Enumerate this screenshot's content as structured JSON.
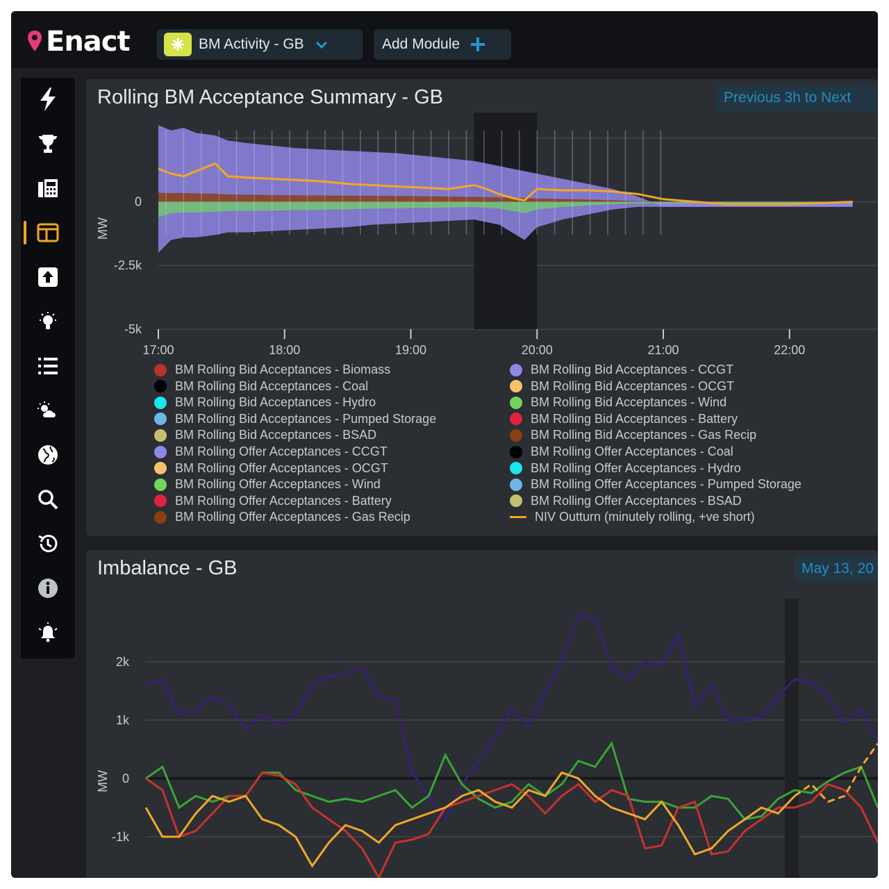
{
  "app": {
    "name": "Enact"
  },
  "toolbar": {
    "module_label": "BM Activity - GB",
    "add_module_label": "Add Module"
  },
  "sidebar": {
    "items": [
      {
        "icon": "bolt-icon"
      },
      {
        "icon": "trophy-icon"
      },
      {
        "icon": "fax-icon"
      },
      {
        "icon": "layout-icon",
        "active": true
      },
      {
        "icon": "upload-icon"
      },
      {
        "icon": "lightbulb-icon"
      },
      {
        "icon": "list-icon"
      },
      {
        "icon": "weather-icon"
      },
      {
        "icon": "globe-icon"
      },
      {
        "icon": "search-icon"
      },
      {
        "icon": "history-icon"
      },
      {
        "icon": "info-icon"
      },
      {
        "icon": "alert-icon"
      }
    ]
  },
  "colors": {
    "accent": "#f5a623",
    "brand_pink": "#e8397a",
    "badge_text": "#1f8fc4"
  },
  "panel1": {
    "title": "Rolling BM Acceptance Summary - GB",
    "range_label": "Previous 3h to Next"
  },
  "panel2": {
    "title": "Imbalance - GB",
    "date_label": "May 13, 20"
  },
  "chart_data": [
    {
      "type": "area",
      "title": "Rolling BM Acceptance Summary - GB",
      "ylabel": "MW",
      "y_ticks": [
        "0",
        "-2.5k",
        "-5k"
      ],
      "x_ticks": [
        "17:00",
        "18:00",
        "19:00",
        "20:00",
        "21:00",
        "22:00"
      ],
      "ylim": [
        -5000,
        3500
      ],
      "highlight_window": [
        "19:30",
        "20:00"
      ],
      "series": [
        {
          "name": "BM Rolling Bid Acceptances - Biomass",
          "color": "#b8322f"
        },
        {
          "name": "BM Rolling Bid Acceptances - CCGT",
          "color": "#8f86e6"
        },
        {
          "name": "BM Rolling Bid Acceptances - Coal",
          "color": "#000000"
        },
        {
          "name": "BM Rolling Bid Acceptances - OCGT",
          "color": "#f5c26b"
        },
        {
          "name": "BM Rolling Bid Acceptances - Hydro",
          "color": "#19e6ef"
        },
        {
          "name": "BM Rolling Bid Acceptances - Wind",
          "color": "#6fd65c"
        },
        {
          "name": "BM Rolling Bid Acceptances - Pumped Storage",
          "color": "#6fb6e6"
        },
        {
          "name": "BM Rolling Bid Acceptances - Battery",
          "color": "#e0213f"
        },
        {
          "name": "BM Rolling Bid Acceptances - BSAD",
          "color": "#c8bf6e"
        },
        {
          "name": "BM Rolling Bid Acceptances - Gas Recip",
          "color": "#8a3f16"
        },
        {
          "name": "BM Rolling Offer Acceptances - CCGT",
          "color": "#8f86e6"
        },
        {
          "name": "BM Rolling Offer Acceptances - Coal",
          "color": "#000000"
        },
        {
          "name": "BM Rolling Offer Acceptances - OCGT",
          "color": "#f5c26b"
        },
        {
          "name": "BM Rolling Offer Acceptances - Hydro",
          "color": "#19e6ef"
        },
        {
          "name": "BM Rolling Offer Acceptances - Wind",
          "color": "#6fd65c"
        },
        {
          "name": "BM Rolling Offer Acceptances - Pumped Storage",
          "color": "#6fb6e6"
        },
        {
          "name": "BM Rolling Offer Acceptances - Battery",
          "color": "#e0213f"
        },
        {
          "name": "BM Rolling Offer Acceptances - BSAD",
          "color": "#c8bf6e"
        },
        {
          "name": "BM Rolling Offer Acceptances - Gas Recip",
          "color": "#8a3f16"
        },
        {
          "name": "NIV Outturn (minutely rolling, +ve short)",
          "color": "#f5a623",
          "line": true
        }
      ],
      "legend_left": [
        {
          "name": "BM Rolling Bid Acceptances - Biomass",
          "color": "#b8322f"
        },
        {
          "name": "BM Rolling Bid Acceptances - Coal",
          "color": "#000000"
        },
        {
          "name": "BM Rolling Bid Acceptances - Hydro",
          "color": "#19e6ef"
        },
        {
          "name": "BM Rolling Bid Acceptances - Pumped Storage",
          "color": "#6fb6e6"
        },
        {
          "name": "BM Rolling Bid Acceptances - BSAD",
          "color": "#c8bf6e"
        },
        {
          "name": "BM Rolling Offer Acceptances - CCGT",
          "color": "#8f86e6"
        },
        {
          "name": "BM Rolling Offer Acceptances - OCGT",
          "color": "#f5c26b"
        },
        {
          "name": "BM Rolling Offer Acceptances - Wind",
          "color": "#6fd65c"
        },
        {
          "name": "BM Rolling Offer Acceptances - Battery",
          "color": "#e0213f"
        },
        {
          "name": "BM Rolling Offer Acceptances - Gas Recip",
          "color": "#8a3f16"
        }
      ],
      "legend_right": [
        {
          "name": "BM Rolling Bid Acceptances - CCGT",
          "color": "#8f86e6"
        },
        {
          "name": "BM Rolling Bid Acceptances - OCGT",
          "color": "#f5c26b"
        },
        {
          "name": "BM Rolling Bid Acceptances - Wind",
          "color": "#6fd65c"
        },
        {
          "name": "BM Rolling Bid Acceptances - Battery",
          "color": "#e0213f"
        },
        {
          "name": "BM Rolling Bid Acceptances - Gas Recip",
          "color": "#8a3f16"
        },
        {
          "name": "BM Rolling Offer Acceptances - Coal",
          "color": "#000000"
        },
        {
          "name": "BM Rolling Offer Acceptances - Hydro",
          "color": "#19e6ef"
        },
        {
          "name": "BM Rolling Offer Acceptances - Pumped Storage",
          "color": "#6fb6e6"
        },
        {
          "name": "BM Rolling Offer Acceptances - BSAD",
          "color": "#c8bf6e"
        },
        {
          "name": "NIV Outturn (minutely rolling, +ve short)",
          "color": "#f5a623",
          "line": true
        }
      ],
      "niv_x_hours": [
        17.0,
        17.1,
        17.2,
        17.3,
        17.45,
        17.55,
        17.7,
        17.9,
        18.1,
        18.3,
        18.5,
        18.7,
        18.9,
        19.1,
        19.3,
        19.5,
        19.6,
        19.7,
        19.8,
        19.9,
        20.0,
        20.2,
        20.4,
        20.6,
        20.8,
        21.0,
        21.5,
        22.0,
        22.5
      ],
      "niv_values": [
        1300,
        1100,
        1000,
        1200,
        1500,
        1000,
        950,
        900,
        850,
        800,
        700,
        650,
        600,
        550,
        500,
        650,
        500,
        300,
        150,
        50,
        500,
        450,
        450,
        400,
        300,
        100,
        -100,
        -100,
        0
      ],
      "envelope_top": [
        3000,
        2800,
        2900,
        2700,
        2600,
        2400,
        2300,
        2200,
        2100,
        2050,
        2000,
        1950,
        1900,
        1800,
        1700,
        1600,
        1500,
        1400,
        1300,
        1200,
        1100,
        900,
        700,
        500,
        200,
        -200,
        -200,
        -200,
        -200
      ],
      "envelope_bottom": [
        -2000,
        -1500,
        -1400,
        -1400,
        -1300,
        -1200,
        -1200,
        -1150,
        -1100,
        -1050,
        -1000,
        -900,
        -850,
        -800,
        -750,
        -700,
        -800,
        -900,
        -1200,
        -1500,
        -1000,
        -700,
        -500,
        -300,
        -200,
        -200,
        -200,
        -200,
        -200
      ]
    },
    {
      "type": "line",
      "title": "Imbalance - GB",
      "ylabel": "MW",
      "y_ticks": [
        "2k",
        "1k",
        "0",
        "-1k"
      ],
      "ylim": [
        -1800,
        3200
      ],
      "series": [
        {
          "name": "",
          "color": "#3a1f7a",
          "values": [
            1600,
            1700,
            1100,
            1150,
            1400,
            1250,
            850,
            1100,
            900,
            1100,
            1600,
            1750,
            1800,
            1900,
            1400,
            1350,
            100,
            -300,
            -700,
            -100,
            300,
            700,
            1200,
            900,
            1500,
            2000,
            2800,
            2750,
            1900,
            1700,
            2000,
            1950,
            2450,
            1250,
            1600,
            1000,
            1000,
            1050,
            1400,
            1700,
            1650,
            1400,
            950,
            1200,
            600
          ]
        },
        {
          "name": "",
          "color": "#3aa536",
          "values": [
            0,
            200,
            -500,
            -300,
            -400,
            -300,
            -300,
            100,
            100,
            -200,
            -300,
            -400,
            -350,
            -400,
            -300,
            -200,
            -500,
            -300,
            400,
            -100,
            -350,
            -500,
            -400,
            -100,
            -300,
            -100,
            300,
            200,
            600,
            -350,
            -400,
            -400,
            -500,
            -500,
            -300,
            -350,
            -700,
            -650,
            -350,
            -200,
            -250,
            -50,
            100,
            200,
            -500
          ]
        },
        {
          "name": "",
          "color": "#c8322d",
          "values": [
            0,
            -200,
            -1000,
            -900,
            -600,
            -300,
            -300,
            100,
            50,
            -100,
            -500,
            -700,
            -900,
            -1200,
            -1700,
            -1100,
            -1050,
            -950,
            -500,
            -400,
            -300,
            -200,
            -100,
            -300,
            -600,
            -300,
            -100,
            -400,
            -200,
            -300,
            -1200,
            -1150,
            -500,
            -400,
            -1300,
            -1250,
            -900,
            -700,
            -500,
            -500,
            -400,
            -100,
            -200,
            -500,
            -1100
          ]
        },
        {
          "name": "",
          "color": "#f0a828",
          "values": [
            -500,
            -1000,
            -1000,
            -600,
            -300,
            -400,
            -300,
            -700,
            -800,
            -1000,
            -1500,
            -1100,
            -800,
            -900,
            -1100,
            -800,
            -700,
            -600,
            -500,
            -300,
            -200,
            -400,
            -500,
            -200,
            -300,
            100,
            0,
            -300,
            -500,
            -600,
            -700,
            -400,
            -800,
            -1300,
            -1200,
            -900,
            -700,
            -500,
            -600,
            -300,
            -100,
            -400,
            -300,
            200,
            600
          ]
        }
      ]
    }
  ]
}
